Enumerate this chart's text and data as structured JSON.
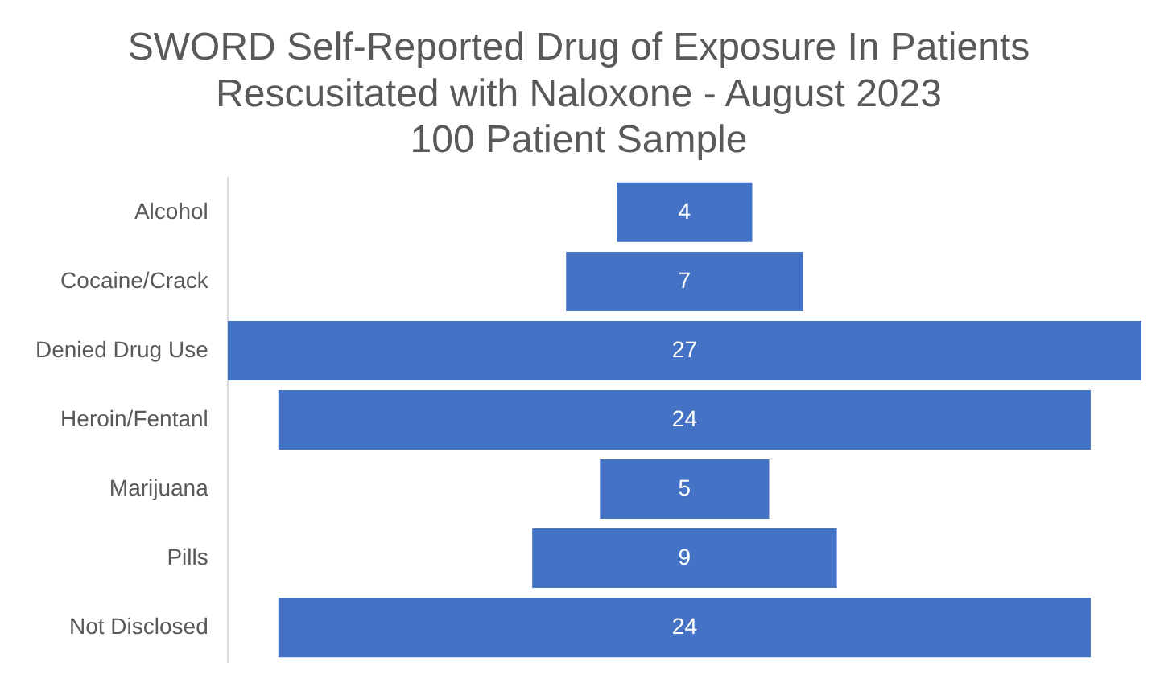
{
  "chart_data": {
    "type": "other",
    "title": "SWORD Self-Reported Drug of Exposure In Patients\nRescusitated with Naloxone - August 2023\n100 Patient Sample",
    "categories": [
      "Alcohol",
      "Cocaine/Crack",
      "Denied Drug Use",
      "Heroin/Fentanl",
      "Marijuana",
      "Pills",
      "Not Disclosed"
    ],
    "values": [
      4,
      7,
      27,
      24,
      5,
      9,
      24
    ],
    "color": "#4472c4",
    "data_labels": true,
    "legend": false
  }
}
